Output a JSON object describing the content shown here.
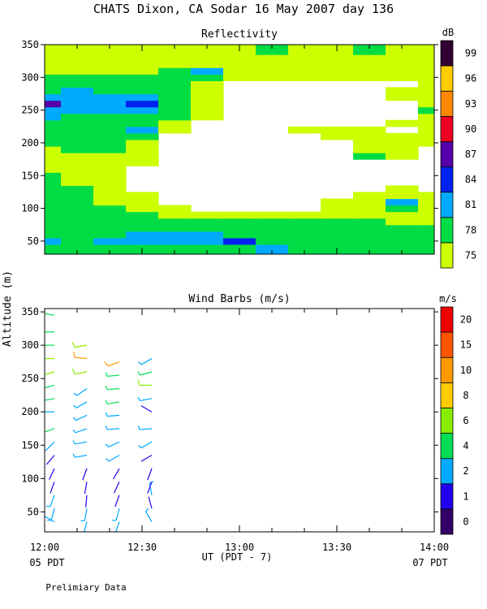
{
  "title": "CHATS Dixon, CA  Sodar  16 May 2007  day 136",
  "ylabel": "Altitude (m)",
  "footer": {
    "ut_label": "UT  (PDT - 7)",
    "left_pdt": "05 PDT",
    "right_pdt": "07 PDT",
    "note": "Prelimiary Data"
  },
  "colors": {
    "reflectivity": [
      "#ccff00",
      "#00dd44",
      "#00aaff",
      "#0022ee",
      "#5500aa",
      "#ee0022",
      "#ff8800",
      "#ffcc00",
      "#330033"
    ],
    "wind": [
      "#330066",
      "#2200ee",
      "#00aaff",
      "#00dd55",
      "#88ee00",
      "#ffcc00",
      "#ff9900",
      "#ff5500",
      "#ee0000"
    ]
  },
  "chart_data": [
    {
      "type": "heatmap",
      "title": "Reflectivity",
      "xlim": [
        "12:00",
        "14:00"
      ],
      "ylim": [
        30,
        350
      ],
      "xticks": [
        "12:00",
        "12:30",
        "13:00",
        "13:30",
        "14:00"
      ],
      "yticks": [
        50,
        100,
        150,
        200,
        250,
        300,
        350
      ],
      "colorbar": {
        "unit": "dB",
        "levels": [
          75,
          78,
          81,
          84,
          87,
          90,
          93,
          96,
          99
        ]
      },
      "altitudes": [
        40,
        50,
        60,
        70,
        80,
        90,
        100,
        110,
        120,
        130,
        140,
        150,
        160,
        170,
        180,
        190,
        200,
        210,
        220,
        230,
        240,
        250,
        260,
        270,
        280,
        290,
        300,
        310,
        320,
        330,
        340,
        350
      ],
      "times": [
        "12:00",
        "12:10",
        "12:20",
        "12:30",
        "12:40",
        "12:50",
        "13:00",
        "13:10",
        "13:20",
        "13:30",
        "13:40",
        "13:50",
        "14:00"
      ],
      "values": [
        [
          79,
          79,
          79,
          80,
          79,
          79,
          80,
          81,
          79,
          79,
          79,
          79,
          79
        ],
        [
          81,
          80,
          81,
          81,
          81,
          82,
          84,
          79,
          79,
          79,
          79,
          79,
          78
        ],
        [
          80,
          79,
          80,
          81,
          81,
          81,
          79,
          79,
          79,
          79,
          78,
          79,
          78
        ],
        [
          79,
          79,
          80,
          79,
          79,
          79,
          79,
          79,
          78,
          78,
          78,
          78,
          78
        ],
        [
          79,
          79,
          79,
          79,
          78,
          78,
          78,
          78,
          78,
          78,
          78,
          77,
          77
        ],
        [
          78,
          78,
          78,
          78,
          77,
          77,
          76,
          76,
          77,
          77,
          77,
          77,
          76
        ],
        [
          78,
          78,
          78,
          77,
          76,
          73,
          73,
          73,
          74,
          76,
          77,
          78,
          77
        ],
        [
          78,
          78,
          77,
          76,
          73,
          73,
          73,
          72,
          73,
          75,
          76,
          81,
          76
        ],
        [
          79,
          78,
          77,
          75,
          72,
          72,
          72,
          72,
          72,
          74,
          76,
          77,
          75
        ],
        [
          80,
          78,
          76,
          74,
          72,
          72,
          72,
          72,
          72,
          73,
          74,
          75,
          74
        ],
        [
          79,
          77,
          76,
          74,
          72,
          72,
          72,
          72,
          72,
          72,
          73,
          73,
          73
        ],
        [
          78,
          77,
          76,
          74,
          72,
          72,
          72,
          72,
          72,
          72,
          72,
          72,
          72
        ],
        [
          77,
          77,
          77,
          74,
          72,
          72,
          72,
          72,
          72,
          72,
          72,
          72,
          72
        ],
        [
          76,
          76,
          77,
          75,
          72,
          72,
          72,
          72,
          72,
          72,
          73,
          74,
          72
        ],
        [
          76,
          77,
          77,
          76,
          72,
          72,
          72,
          72,
          72,
          74,
          78,
          75,
          72
        ],
        [
          77,
          78,
          78,
          77,
          72,
          72,
          72,
          72,
          72,
          74,
          77,
          76,
          74
        ],
        [
          78,
          79,
          78,
          77,
          72,
          72,
          72,
          72,
          72,
          73,
          75,
          76,
          75
        ],
        [
          79,
          79,
          79,
          78,
          73,
          72,
          72,
          72,
          74,
          75,
          76,
          75,
          75
        ],
        [
          79,
          80,
          79,
          81,
          75,
          72,
          72,
          72,
          75,
          76,
          75,
          74,
          76
        ],
        [
          80,
          79,
          79,
          78,
          76,
          73,
          72,
          72,
          73,
          74,
          74,
          75,
          77
        ],
        [
          81,
          80,
          80,
          79,
          78,
          76,
          72,
          72,
          72,
          72,
          73,
          74,
          77
        ],
        [
          83,
          82,
          81,
          81,
          79,
          77,
          72,
          72,
          72,
          72,
          72,
          74,
          78
        ],
        [
          88,
          82,
          82,
          84,
          79,
          77,
          72,
          72,
          72,
          72,
          72,
          74,
          77
        ],
        [
          82,
          82,
          81,
          81,
          79,
          77,
          72,
          72,
          72,
          72,
          72,
          75,
          77
        ],
        [
          80,
          81,
          80,
          79,
          78,
          77,
          73,
          72,
          72,
          72,
          72,
          75,
          76
        ],
        [
          79,
          79,
          79,
          78,
          78,
          77,
          74,
          72,
          72,
          72,
          72,
          74,
          76
        ],
        [
          78,
          79,
          78,
          78,
          78,
          78,
          76,
          75,
          76,
          76,
          76,
          76,
          75
        ],
        [
          77,
          77,
          77,
          77,
          78,
          81,
          77,
          77,
          77,
          77,
          77,
          77,
          76
        ],
        [
          77,
          77,
          76,
          76,
          77,
          77,
          77,
          77,
          77,
          77,
          76,
          76,
          76
        ],
        [
          76,
          75,
          75,
          75,
          76,
          77,
          77,
          77,
          77,
          76,
          76,
          76,
          75
        ],
        [
          75,
          75,
          76,
          76,
          76,
          77,
          77,
          78,
          77,
          77,
          78,
          77,
          76
        ],
        [
          76,
          76,
          77,
          76,
          75,
          75,
          76,
          78,
          77,
          77,
          78,
          76,
          77
        ]
      ]
    },
    {
      "type": "scatter",
      "title": "Wind Barbs (m/s)",
      "xlim": [
        "12:00",
        "14:00"
      ],
      "ylim": [
        20,
        355
      ],
      "xticks": [
        "12:00",
        "12:30",
        "13:00",
        "13:30",
        "14:00"
      ],
      "yticks": [
        50,
        100,
        150,
        200,
        250,
        300,
        350
      ],
      "colorbar": {
        "unit": "m/s",
        "levels": [
          0,
          1,
          2,
          4,
          6,
          8,
          10,
          15,
          20
        ]
      },
      "barbs": [
        {
          "time": "12:00",
          "alt": 35,
          "speed": 2,
          "dir": 300
        },
        {
          "time": "12:00",
          "alt": 55,
          "speed": 2,
          "dir": 195
        },
        {
          "time": "12:00",
          "alt": 75,
          "speed": 2,
          "dir": 200
        },
        {
          "time": "12:00",
          "alt": 95,
          "speed": 1,
          "dir": 200
        },
        {
          "time": "12:00",
          "alt": 115,
          "speed": 1,
          "dir": 205
        },
        {
          "time": "12:00",
          "alt": 135,
          "speed": 1,
          "dir": 220
        },
        {
          "time": "12:00",
          "alt": 155,
          "speed": 2,
          "dir": 225
        },
        {
          "time": "12:00",
          "alt": 175,
          "speed": 4,
          "dir": 250
        },
        {
          "time": "12:00",
          "alt": 200,
          "speed": 2,
          "dir": 270
        },
        {
          "time": "12:00",
          "alt": 220,
          "speed": 4,
          "dir": 260
        },
        {
          "time": "12:00",
          "alt": 240,
          "speed": 4,
          "dir": 255
        },
        {
          "time": "12:00",
          "alt": 260,
          "speed": 6,
          "dir": 255
        },
        {
          "time": "12:00",
          "alt": 280,
          "speed": 6,
          "dir": 270
        },
        {
          "time": "12:00",
          "alt": 300,
          "speed": 4,
          "dir": 270
        },
        {
          "time": "12:00",
          "alt": 320,
          "speed": 4,
          "dir": 270
        },
        {
          "time": "12:00",
          "alt": 345,
          "speed": 4,
          "dir": 280
        },
        {
          "time": "12:10",
          "alt": 35,
          "speed": 2,
          "dir": 195
        },
        {
          "time": "12:10",
          "alt": 55,
          "speed": 2,
          "dir": 190
        },
        {
          "time": "12:10",
          "alt": 75,
          "speed": 1,
          "dir": 185
        },
        {
          "time": "12:10",
          "alt": 95,
          "speed": 1,
          "dir": 190
        },
        {
          "time": "12:10",
          "alt": 115,
          "speed": 1,
          "dir": 200
        },
        {
          "time": "12:10",
          "alt": 135,
          "speed": 2,
          "dir": 260
        },
        {
          "time": "12:10",
          "alt": 155,
          "speed": 2,
          "dir": 260
        },
        {
          "time": "12:10",
          "alt": 175,
          "speed": 2,
          "dir": 250
        },
        {
          "time": "12:10",
          "alt": 195,
          "speed": 2,
          "dir": 245
        },
        {
          "time": "12:10",
          "alt": 215,
          "speed": 2,
          "dir": 240
        },
        {
          "time": "12:10",
          "alt": 235,
          "speed": 2,
          "dir": 235
        },
        {
          "time": "12:10",
          "alt": 260,
          "speed": 6,
          "dir": 260
        },
        {
          "time": "12:10",
          "alt": 280,
          "speed": 10,
          "dir": 275
        },
        {
          "time": "12:10",
          "alt": 300,
          "speed": 6,
          "dir": 260
        },
        {
          "time": "12:20",
          "alt": 35,
          "speed": 2,
          "dir": 200
        },
        {
          "time": "12:20",
          "alt": 55,
          "speed": 2,
          "dir": 195
        },
        {
          "time": "12:20",
          "alt": 75,
          "speed": 1,
          "dir": 200
        },
        {
          "time": "12:20",
          "alt": 95,
          "speed": 1,
          "dir": 205
        },
        {
          "time": "12:20",
          "alt": 115,
          "speed": 1,
          "dir": 210
        },
        {
          "time": "12:20",
          "alt": 135,
          "speed": 2,
          "dir": 240
        },
        {
          "time": "12:20",
          "alt": 155,
          "speed": 2,
          "dir": 245
        },
        {
          "time": "12:20",
          "alt": 175,
          "speed": 2,
          "dir": 265
        },
        {
          "time": "12:20",
          "alt": 195,
          "speed": 2,
          "dir": 265
        },
        {
          "time": "12:20",
          "alt": 215,
          "speed": 4,
          "dir": 260
        },
        {
          "time": "12:20",
          "alt": 235,
          "speed": 4,
          "dir": 265
        },
        {
          "time": "12:20",
          "alt": 255,
          "speed": 4,
          "dir": 265
        },
        {
          "time": "12:20",
          "alt": 275,
          "speed": 10,
          "dir": 250
        },
        {
          "time": "12:30",
          "alt": 35,
          "speed": 2,
          "dir": 330
        },
        {
          "time": "12:30",
          "alt": 55,
          "speed": 1,
          "dir": 345
        },
        {
          "time": "12:30",
          "alt": 75,
          "speed": 2,
          "dir": 350
        },
        {
          "time": "12:30",
          "alt": 95,
          "speed": 1,
          "dir": 200
        },
        {
          "time": "12:30",
          "alt": 115,
          "speed": 1,
          "dir": 200
        },
        {
          "time": "12:30",
          "alt": 135,
          "speed": 1,
          "dir": 240
        },
        {
          "time": "12:30",
          "alt": 155,
          "speed": 2,
          "dir": 240
        },
        {
          "time": "12:30",
          "alt": 175,
          "speed": 2,
          "dir": 265
        },
        {
          "time": "12:30",
          "alt": 200,
          "speed": 1,
          "dir": 300
        },
        {
          "time": "12:30",
          "alt": 220,
          "speed": 2,
          "dir": 260
        },
        {
          "time": "12:30",
          "alt": 240,
          "speed": 6,
          "dir": 270
        },
        {
          "time": "12:30",
          "alt": 260,
          "speed": 4,
          "dir": 255
        },
        {
          "time": "12:30",
          "alt": 280,
          "speed": 2,
          "dir": 240
        }
      ]
    }
  ]
}
